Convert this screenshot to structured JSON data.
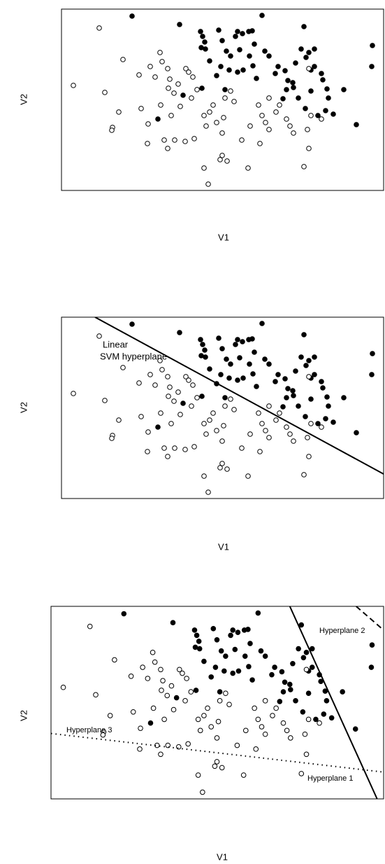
{
  "chart_data": {
    "type": "scatter",
    "xlim": [
      0,
      461
    ],
    "ylim": [
      0,
      259
    ],
    "series": [
      {
        "color": "#000",
        "filled": true,
        "x": [
          101,
          169,
          199,
          202,
          205,
          200,
          206,
          225,
          230,
          249,
          252,
          259,
          268,
          273,
          287,
          347,
          236,
          242,
          212,
          228,
          222,
          240,
          252,
          260,
          234,
          269,
          274,
          279,
          291,
          297,
          306,
          310,
          320,
          317,
          322,
          331,
          335,
          343,
          350,
          354,
          357,
          362,
          372,
          374,
          380,
          378,
          389,
          404,
          422,
          445,
          444,
          138,
          174,
          201,
          324,
          332,
          339,
          357,
          349,
          367,
          382,
          362,
          255,
          276
        ],
        "y": [
          249,
          237,
          227,
          220,
          212,
          204,
          202,
          229,
          214,
          220,
          227,
          224,
          227,
          228,
          250,
          234,
          199,
          192,
          185,
          177,
          164,
          172,
          169,
          172,
          144,
          192,
          178,
          160,
          199,
          192,
          167,
          177,
          171,
          131,
          144,
          154,
          182,
          202,
          190,
          197,
          172,
          177,
          167,
          158,
          145,
          114,
          109,
          144,
          94,
          207,
          177,
          102,
          136,
          146,
          157,
          147,
          132,
          142,
          117,
          107,
          132,
          202,
          201,
          209
        ]
      },
      {
        "color": "#000",
        "filled": false,
        "x": [
          54,
          17,
          62,
          88,
          82,
          73,
          72,
          111,
          114,
          124,
          123,
          127,
          141,
          144,
          152,
          155,
          153,
          161,
          167,
          178,
          182,
          188,
          194,
          186,
          170,
          157,
          147,
          152,
          162,
          177,
          190,
          204,
          212,
          217,
          207,
          222,
          230,
          234,
          242,
          247,
          232,
          230,
          227,
          237,
          204,
          210,
          267,
          258,
          284,
          282,
          287,
          292,
          297,
          270,
          307,
          312,
          297,
          322,
          327,
          332,
          352,
          354,
          347,
          357,
          372,
          354,
          142,
          134
        ],
        "y": [
          232,
          150,
          140,
          187,
          112,
          90,
          86,
          165,
          117,
          95,
          67,
          177,
          197,
          184,
          174,
          159,
          146,
          139,
          152,
          174,
          169,
          162,
          144,
          132,
          120,
          107,
          72,
          60,
          72,
          70,
          74,
          107,
          112,
          122,
          92,
          97,
          82,
          132,
          142,
          127,
          104,
          50,
          44,
          42,
          32,
          9,
          32,
          72,
          67,
          122,
          107,
          97,
          87,
          92,
          112,
          122,
          132,
          102,
          92,
          82,
          87,
          60,
          34,
          107,
          102,
          174,
          122,
          162
        ]
      }
    ],
    "panels": [
      {
        "xlabel": "V1",
        "ylabel": "V2"
      },
      {
        "xlabel": "V1",
        "ylabel": "V2",
        "lines": [
          {
            "x": [
              48,
              461
            ],
            "y": [
              259,
              35
            ],
            "style": "solid"
          }
        ],
        "annotations": [
          "Linear",
          "SVM hyperplane"
        ]
      },
      {
        "xlabel": "V1",
        "ylabel": "V2",
        "lines": [
          {
            "x": [
              331,
              452
            ],
            "y": [
              259,
              0
            ],
            "style": "solid"
          },
          {
            "x": [
              423,
              461
            ],
            "y": [
              259,
              227
            ],
            "style": "dashed"
          },
          {
            "x": [
              0,
              461
            ],
            "y": [
              88,
              36
            ],
            "style": "dotted"
          }
        ],
        "annotations": [
          "Hyperplane 1",
          "Hyperplane 2",
          "Hyperplane 3"
        ]
      }
    ]
  }
}
